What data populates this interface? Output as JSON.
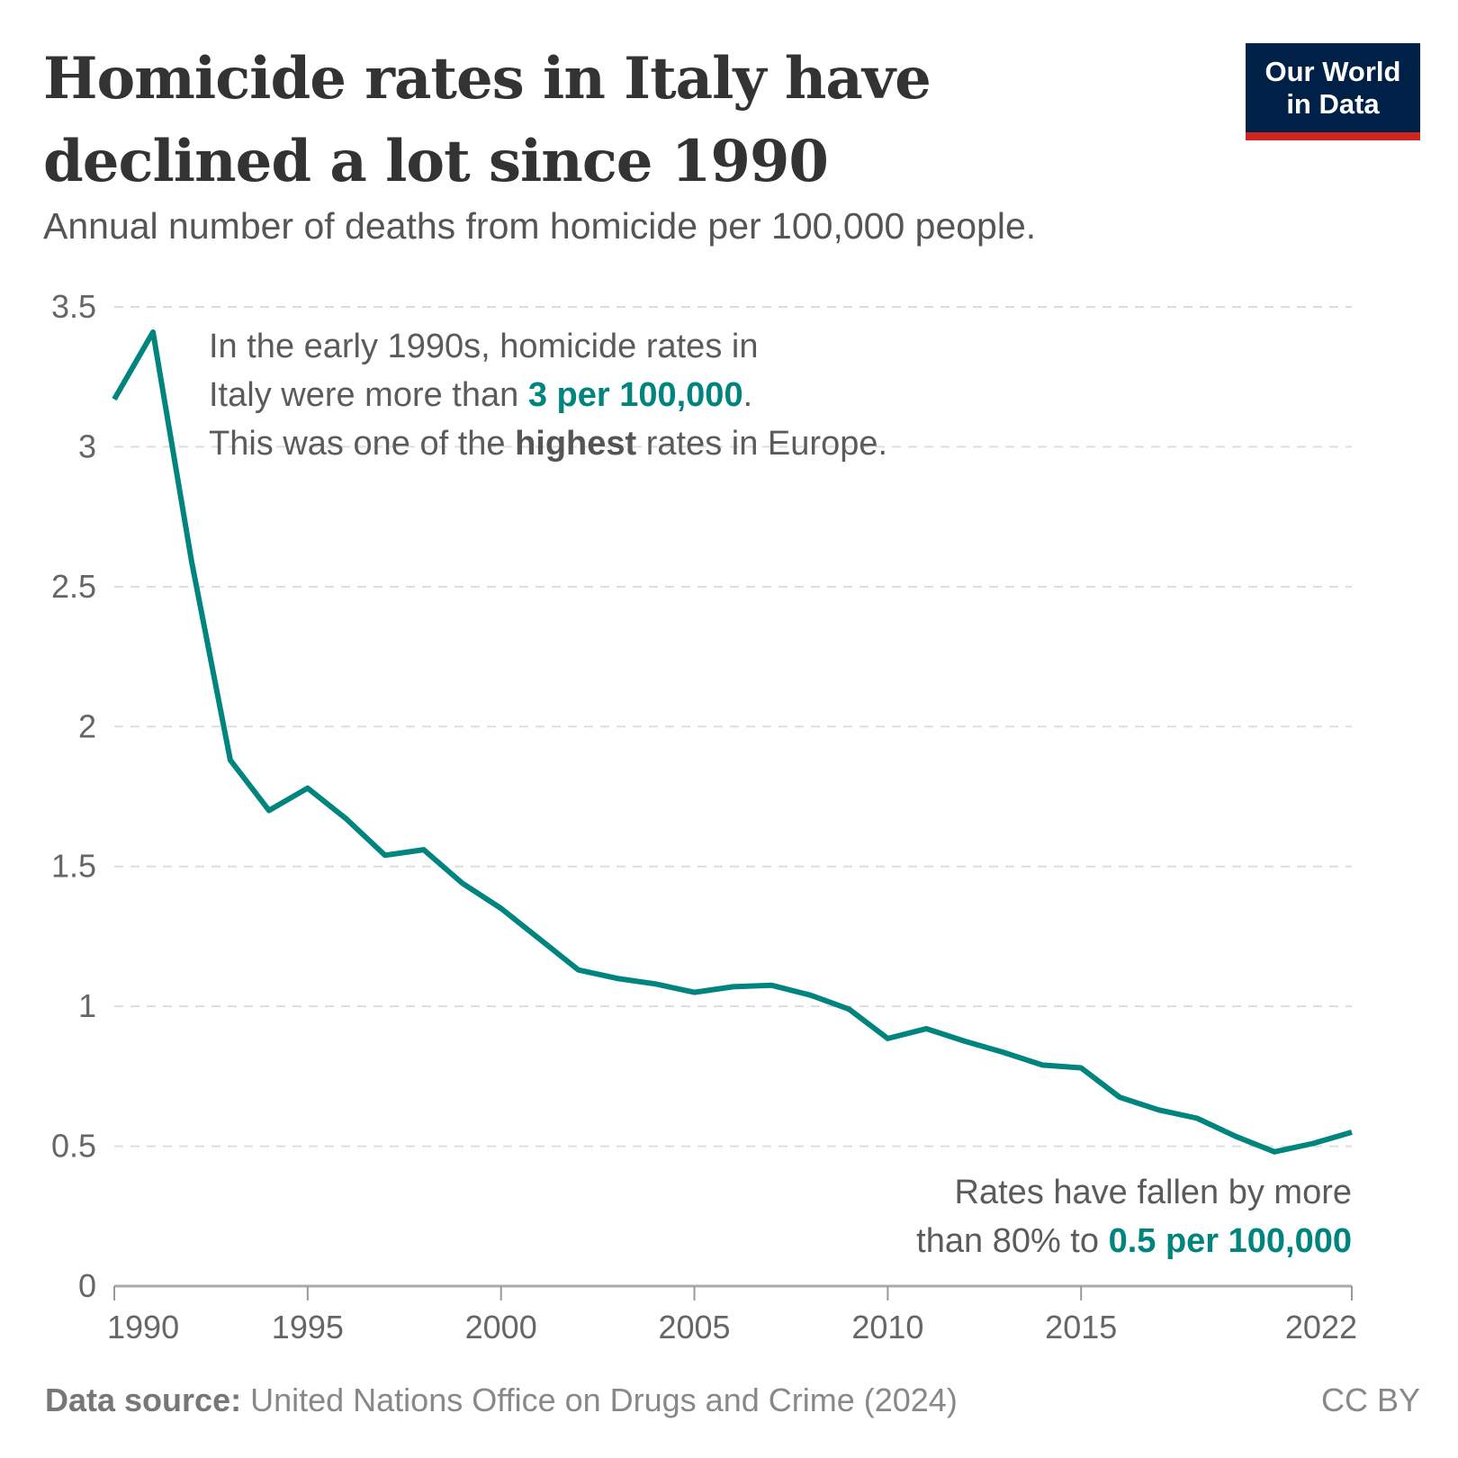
{
  "title": "Homicide rates in Italy have declined a lot since 1990",
  "subtitle": "Annual number of deaths from homicide per 100,000 people.",
  "logo": {
    "line1": "Our World",
    "line2": "in Data"
  },
  "annotations": {
    "top": {
      "line1": "In the early 1990s, homicide rates in",
      "line2_pre": "Italy were more than ",
      "line2_hl": "3 per 100,000",
      "line2_post": ".",
      "line3_pre": "This was one of the ",
      "line3_bold": "highest",
      "line3_post": " rates in Europe."
    },
    "bottom": {
      "line1": "Rates have fallen by more",
      "line2_pre": "than 80% to ",
      "line2_hl": "0.5 per 100,000"
    }
  },
  "footer": {
    "label": "Data source:",
    "source": "United Nations Office on Drugs and Crime (2024)",
    "license": "CC BY"
  },
  "colors": {
    "line": "#00847e",
    "highlight": "#00847e",
    "logo_bg": "#002147",
    "logo_bar": "#ce261e"
  },
  "chart_data": {
    "type": "line",
    "xlim": [
      1990,
      2022
    ],
    "ylim": [
      0,
      3.5
    ],
    "grid": "horizontal dashed",
    "x_ticks": [
      "1990",
      "1995",
      "2000",
      "2005",
      "2010",
      "2015",
      "2022"
    ],
    "y_ticks": [
      "0",
      "0.5",
      "1",
      "1.5",
      "2",
      "2.5",
      "3",
      "3.5"
    ],
    "series": [
      {
        "x": [
          1990,
          1991,
          1992,
          1993,
          1994,
          1995,
          1996,
          1997,
          1998,
          1999,
          2000,
          2001,
          2002,
          2003,
          2004,
          2005,
          2006,
          2007,
          2008,
          2009,
          2010,
          2011,
          2012,
          2013,
          2014,
          2015,
          2016,
          2017,
          2018,
          2019,
          2020,
          2021,
          2022
        ],
        "y": [
          3.17,
          3.41,
          2.59,
          1.88,
          1.7,
          1.78,
          1.67,
          1.54,
          1.56,
          1.44,
          1.35,
          1.24,
          1.13,
          1.1,
          1.08,
          1.05,
          1.07,
          1.075,
          1.04,
          0.99,
          0.885,
          0.92,
          0.875,
          0.835,
          0.79,
          0.78,
          0.675,
          0.63,
          0.6,
          0.535,
          0.48,
          0.51,
          0.55
        ]
      }
    ]
  }
}
